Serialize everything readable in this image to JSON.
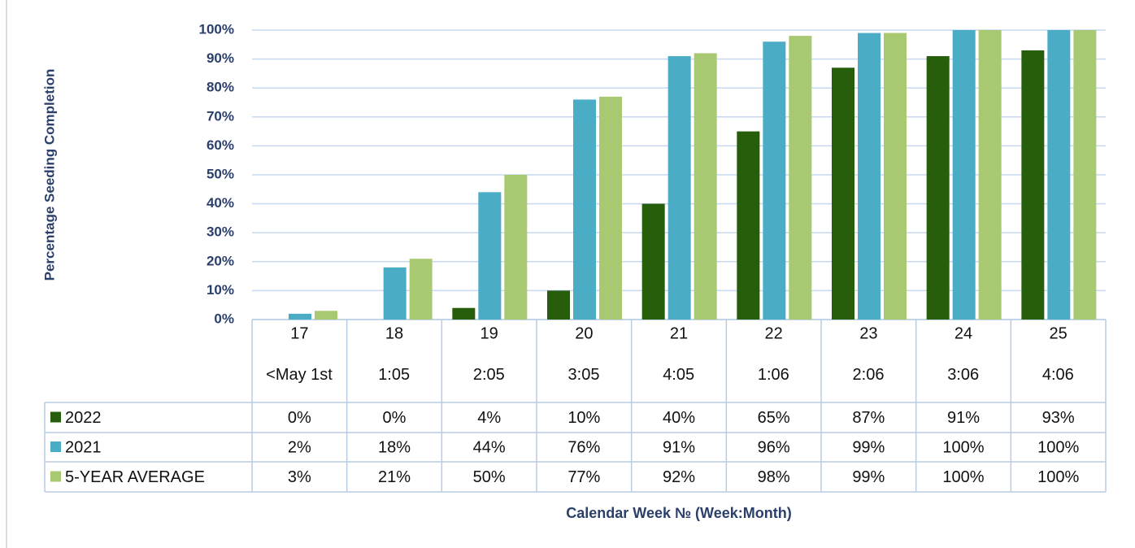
{
  "chart_data": {
    "type": "bar",
    "y_label": "Percentage Seeding Completion",
    "x_label": "Calendar Week № (Week:Month)",
    "categories": [
      "17",
      "18",
      "19",
      "20",
      "21",
      "22",
      "23",
      "24",
      "25"
    ],
    "sublabels": [
      "<May 1st",
      "1:05",
      "2:05",
      "3:05",
      "4:05",
      "1:06",
      "2:06",
      "3:06",
      "4:06"
    ],
    "series": [
      {
        "name": "2022",
        "color": "#275e0c",
        "values": [
          0,
          0,
          4,
          10,
          40,
          65,
          87,
          91,
          93
        ],
        "value_labels": [
          "0%",
          "0%",
          "4%",
          "10%",
          "40%",
          "65%",
          "87%",
          "91%",
          "93%"
        ]
      },
      {
        "name": "2021",
        "color": "#4bacc6",
        "values": [
          2,
          18,
          44,
          76,
          91,
          96,
          99,
          100,
          100
        ],
        "value_labels": [
          "2%",
          "18%",
          "44%",
          "76%",
          "91%",
          "96%",
          "99%",
          "100%",
          "100%"
        ]
      },
      {
        "name": "5-YEAR AVERAGE",
        "color": "#a9c872",
        "values": [
          3,
          21,
          50,
          77,
          92,
          98,
          99,
          100,
          100
        ],
        "value_labels": [
          "3%",
          "21%",
          "50%",
          "77%",
          "92%",
          "98%",
          "99%",
          "100%",
          "100%"
        ]
      }
    ],
    "ylim": [
      0,
      100
    ],
    "yticks": [
      {
        "value": 0,
        "label": "0%"
      },
      {
        "value": 10,
        "label": "10%"
      },
      {
        "value": 20,
        "label": "20%"
      },
      {
        "value": 30,
        "label": "30%"
      },
      {
        "value": 40,
        "label": "40%"
      },
      {
        "value": 50,
        "label": "50%"
      },
      {
        "value": 60,
        "label": "60%"
      },
      {
        "value": 70,
        "label": "70%"
      },
      {
        "value": 80,
        "label": "80%"
      },
      {
        "value": 90,
        "label": "90%"
      },
      {
        "value": 100,
        "label": "100%"
      }
    ],
    "grid": true
  }
}
